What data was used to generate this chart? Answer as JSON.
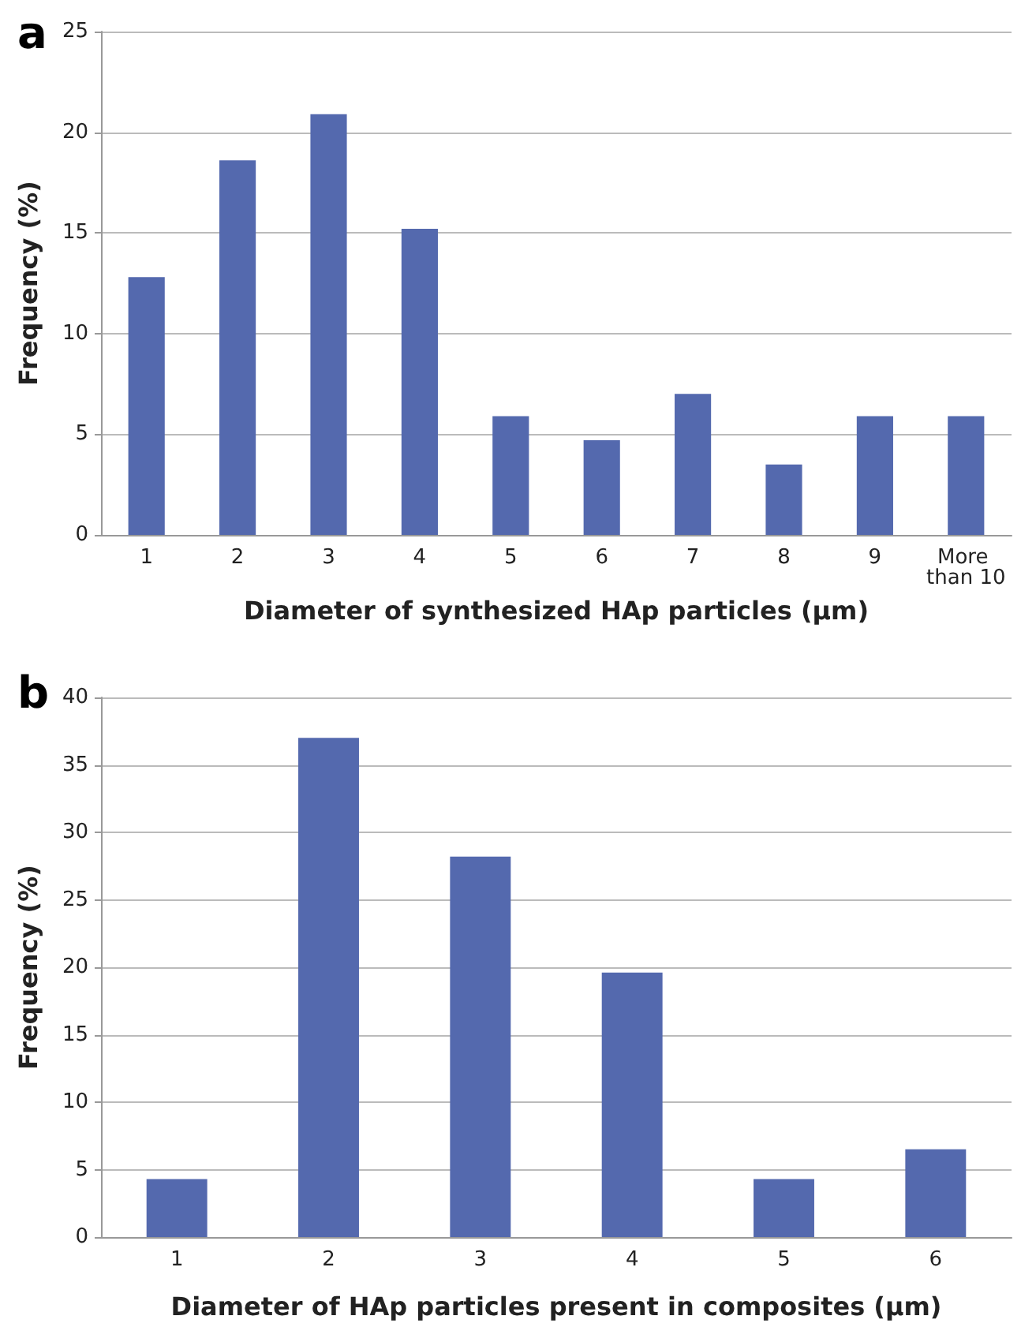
{
  "chart_data": [
    {
      "type": "bar",
      "title": "a",
      "categories": [
        "1",
        "2",
        "3",
        "4",
        "5",
        "6",
        "7",
        "8",
        "9",
        "More than 10"
      ],
      "values": [
        12.8,
        18.6,
        20.9,
        15.2,
        5.9,
        4.7,
        7.0,
        3.5,
        5.9,
        5.9
      ],
      "color": "#5469ae",
      "xlabel": "Diameter of synthesized HAp particles (µm)",
      "ylabel": "Frequency (%)",
      "ylim": [
        0,
        25
      ],
      "yticks": [
        0,
        5,
        10,
        15,
        20,
        25
      ],
      "grid": "y"
    },
    {
      "type": "bar",
      "title": "b",
      "categories": [
        "1",
        "2",
        "3",
        "4",
        "5",
        "6"
      ],
      "values": [
        4.3,
        37.0,
        28.2,
        19.6,
        4.3,
        6.5
      ],
      "color": "#5469ae",
      "xlabel": "Diameter of HAp particles present in composites (µm)",
      "ylabel": "Frequency (%)",
      "ylim": [
        0,
        40
      ],
      "yticks": [
        0,
        5,
        10,
        15,
        20,
        25,
        30,
        35,
        40
      ],
      "grid": "y"
    }
  ]
}
